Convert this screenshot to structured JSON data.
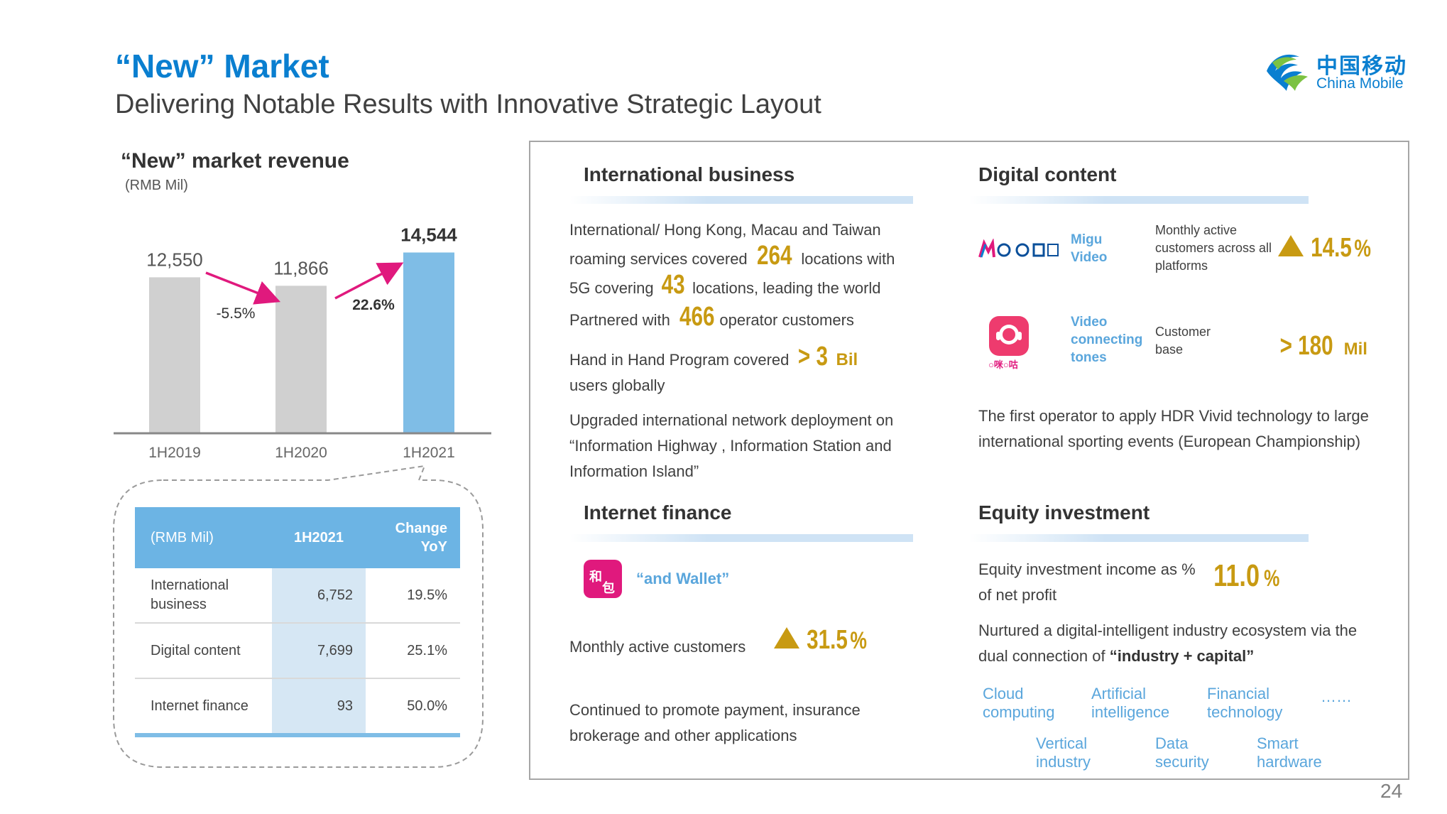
{
  "header": {
    "title": "“New” Market",
    "subtitle": "Delivering Notable Results with Innovative Strategic Layout",
    "logo_cn": "中国移动",
    "logo_en": "China Mobile"
  },
  "chart_title": "“New” market revenue",
  "chart_unit": "(RMB Mil)",
  "chart_data": {
    "type": "bar",
    "categories": [
      "1H2019",
      "1H2020",
      "1H2021"
    ],
    "values": [
      12550,
      11866,
      14544
    ],
    "value_labels": [
      "12,550",
      "11,866",
      "14,544"
    ],
    "changes": [
      "-5.5%",
      "22.6%"
    ],
    "colors": [
      "#d0d0d0",
      "#d0d0d0",
      "#7fbde6"
    ],
    "arrow_color": "#e0197d",
    "ylim": [
      0,
      16000
    ]
  },
  "table": {
    "headers": [
      "(RMB Mil)",
      "1H2021",
      "Change YoY"
    ],
    "rows": [
      {
        "name": "International business",
        "value": "6,752",
        "change": "19.5%"
      },
      {
        "name": "Digital content",
        "value": "7,699",
        "change": "25.1%"
      },
      {
        "name": "Internet finance",
        "value": "93",
        "change": "50.0%"
      }
    ]
  },
  "international": {
    "title": "International business",
    "l1_a": "International/ Hong Kong, Macau and Taiwan",
    "l2_a": "roaming services covered",
    "l2_num": "264",
    "l2_b": "locations with",
    "l3_a": "5G covering",
    "l3_num": "43",
    "l3_b": "locations, leading the world",
    "p2_a": "Partnered with",
    "p2_num": "466",
    "p2_b": "operator customers",
    "p3_a": "Hand in Hand Program covered",
    "p3_num": "> 3",
    "p3_unit": "Bil",
    "p3_b": "users globally",
    "p4": "Upgraded international network deployment on “Information Highway , Information Station and Information Island”"
  },
  "digital": {
    "title": "Digital content",
    "migu_label": "Migu Video",
    "migu_desc": "Monthly active customers across all platforms",
    "migu_num": "14.5",
    "migu_unit": "%",
    "tones_label": "Video connecting tones",
    "tones_desc": "Customer base",
    "tones_num": "> 180",
    "tones_unit": "Mil",
    "para": "The first operator to apply HDR Vivid technology to large international sporting events (European Championship)"
  },
  "finance": {
    "title": "Internet finance",
    "wallet_label": "“and Wallet”",
    "mac_label": "Monthly active customers",
    "mac_num": "31.5",
    "mac_unit": "%",
    "para": "Continued to promote payment, insurance brokerage and other applications"
  },
  "equity": {
    "title": "Equity investment",
    "income_text": "Equity investment income as % of net profit",
    "income_num": "11.0",
    "income_unit": "%",
    "eco_a": "Nurtured a digital-intelligent industry ecosystem via the dual connection of",
    "eco_b": "“industry + capital”",
    "tags": [
      "Cloud computing",
      "Artificial intelligence",
      "Financial technology",
      "……",
      "Vertical industry",
      "Data security",
      "Smart hardware"
    ]
  },
  "page_number": "24"
}
